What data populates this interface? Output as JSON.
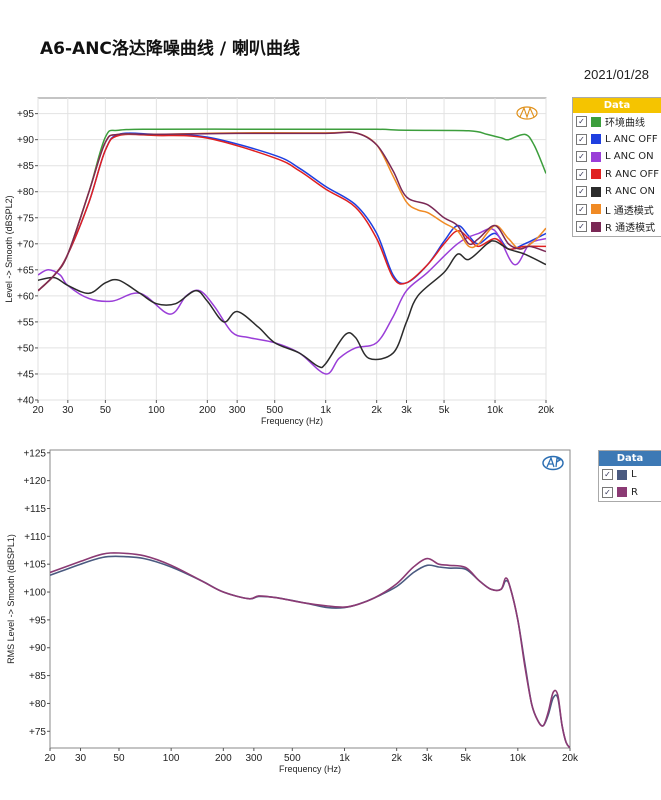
{
  "header": {
    "title": "A6-ANC洛达降噪曲线 / 喇叭曲线",
    "date": "2021/01/28"
  },
  "chart_data": [
    {
      "type": "line",
      "xscale": "log",
      "xlim": [
        20,
        20000
      ],
      "ylim": [
        40,
        98
      ],
      "xlabel": "Frequency (Hz)",
      "ylabel": "Level -> Smooth (dBSPL2)",
      "xticks": [
        20,
        30,
        50,
        100,
        200,
        300,
        500,
        1000,
        2000,
        3000,
        5000,
        10000,
        20000
      ],
      "xtick_labels": [
        "20",
        "30",
        "50",
        "100",
        "200",
        "300",
        "500",
        "1k",
        "2k",
        "3k",
        "5k",
        "10k",
        "20k"
      ],
      "yticks": [
        40,
        45,
        50,
        55,
        60,
        65,
        70,
        75,
        80,
        85,
        90,
        95
      ],
      "ytick_labels": [
        "+40",
        "+45",
        "+50",
        "+55",
        "+60",
        "+65",
        "+70",
        "+75",
        "+80",
        "+85",
        "+90",
        "+95"
      ],
      "grid": true,
      "legend": {
        "title": "Data",
        "position": "right"
      },
      "series": [
        {
          "name": "环境曲线",
          "color": "#3c9e3c",
          "points": [
            [
              20,
              61
            ],
            [
              25,
              64
            ],
            [
              30,
              68
            ],
            [
              40,
              80
            ],
            [
              50,
              90.5
            ],
            [
              60,
              91.8
            ],
            [
              100,
              92
            ],
            [
              300,
              92
            ],
            [
              1000,
              92
            ],
            [
              2000,
              92
            ],
            [
              3000,
              91.8
            ],
            [
              7000,
              91.7
            ],
            [
              9000,
              91
            ],
            [
              11000,
              90.3
            ],
            [
              12000,
              90
            ],
            [
              15000,
              91
            ],
            [
              17000,
              89
            ],
            [
              20000,
              83.5
            ]
          ]
        },
        {
          "name": "L ANC OFF",
          "color": "#1f3fe0",
          "points": [
            [
              20,
              61
            ],
            [
              25,
              64
            ],
            [
              30,
              68
            ],
            [
              40,
              78
            ],
            [
              50,
              88
            ],
            [
              60,
              91
            ],
            [
              100,
              91
            ],
            [
              200,
              90.5
            ],
            [
              500,
              87
            ],
            [
              700,
              84.5
            ],
            [
              1000,
              81
            ],
            [
              1500,
              77.5
            ],
            [
              2000,
              72
            ],
            [
              2500,
              64
            ],
            [
              3000,
              62.5
            ],
            [
              4000,
              66
            ],
            [
              5000,
              70.5
            ],
            [
              6000,
              73.5
            ],
            [
              7000,
              71.5
            ],
            [
              8000,
              70
            ],
            [
              10000,
              72
            ],
            [
              12000,
              69
            ],
            [
              15000,
              70
            ],
            [
              20000,
              72
            ]
          ]
        },
        {
          "name": "L ANC ON",
          "color": "#9a3ed8",
          "points": [
            [
              20,
              64
            ],
            [
              23,
              65
            ],
            [
              27,
              64
            ],
            [
              30,
              62
            ],
            [
              40,
              59.5
            ],
            [
              55,
              59
            ],
            [
              80,
              60.5
            ],
            [
              120,
              56.5
            ],
            [
              150,
              60
            ],
            [
              180,
              61
            ],
            [
              220,
              58
            ],
            [
              280,
              53
            ],
            [
              350,
              52
            ],
            [
              500,
              51
            ],
            [
              700,
              49
            ],
            [
              1000,
              45
            ],
            [
              1200,
              48
            ],
            [
              1500,
              50
            ],
            [
              2000,
              51
            ],
            [
              2500,
              56
            ],
            [
              3000,
              61
            ],
            [
              4000,
              64.5
            ],
            [
              6000,
              70
            ],
            [
              8000,
              72
            ],
            [
              10000,
              72.5
            ],
            [
              13000,
              66
            ],
            [
              16000,
              70
            ],
            [
              20000,
              71
            ]
          ]
        },
        {
          "name": "R ANC OFF",
          "color": "#e02020",
          "points": [
            [
              20,
              61
            ],
            [
              25,
              64
            ],
            [
              30,
              68
            ],
            [
              40,
              78
            ],
            [
              50,
              88
            ],
            [
              60,
              90.8
            ],
            [
              100,
              90.8
            ],
            [
              200,
              90.3
            ],
            [
              500,
              86.5
            ],
            [
              700,
              84
            ],
            [
              1000,
              80.5
            ],
            [
              1500,
              77
            ],
            [
              2000,
              71
            ],
            [
              2500,
              63.5
            ],
            [
              3000,
              62.5
            ],
            [
              4000,
              66
            ],
            [
              5000,
              70
            ],
            [
              6000,
              72.5
            ],
            [
              7000,
              71
            ],
            [
              8000,
              69.5
            ],
            [
              10000,
              71
            ],
            [
              12000,
              69
            ],
            [
              15000,
              69.5
            ],
            [
              20000,
              69.5
            ]
          ]
        },
        {
          "name": "R ANC ON",
          "color": "#2b2b2b",
          "points": [
            [
              20,
              63
            ],
            [
              25,
              63.5
            ],
            [
              30,
              62
            ],
            [
              40,
              60.5
            ],
            [
              50,
              62.5
            ],
            [
              60,
              63
            ],
            [
              80,
              60.5
            ],
            [
              100,
              58.5
            ],
            [
              130,
              58.5
            ],
            [
              170,
              61
            ],
            [
              200,
              59
            ],
            [
              250,
              55
            ],
            [
              300,
              57
            ],
            [
              400,
              54
            ],
            [
              500,
              51
            ],
            [
              700,
              49
            ],
            [
              900,
              46.5
            ],
            [
              1000,
              47
            ],
            [
              1300,
              52.5
            ],
            [
              1500,
              52
            ],
            [
              1800,
              48
            ],
            [
              2500,
              49
            ],
            [
              3000,
              55
            ],
            [
              3500,
              60
            ],
            [
              5000,
              64.5
            ],
            [
              6000,
              68
            ],
            [
              7000,
              67
            ],
            [
              9000,
              70
            ],
            [
              10000,
              70.5
            ],
            [
              12000,
              69
            ],
            [
              15000,
              68
            ],
            [
              20000,
              66
            ]
          ]
        },
        {
          "name": "L 通透模式",
          "color": "#f08a24",
          "points": [
            [
              20,
              61
            ],
            [
              25,
              64
            ],
            [
              30,
              68
            ],
            [
              40,
              80
            ],
            [
              50,
              89.5
            ],
            [
              60,
              91
            ],
            [
              100,
              91
            ],
            [
              300,
              91.3
            ],
            [
              1000,
              91.3
            ],
            [
              1500,
              91.3
            ],
            [
              2000,
              89
            ],
            [
              2500,
              83
            ],
            [
              3000,
              78
            ],
            [
              3500,
              76.5
            ],
            [
              4000,
              76
            ],
            [
              5000,
              74
            ],
            [
              6000,
              72.5
            ],
            [
              7000,
              69.5
            ],
            [
              8000,
              70
            ],
            [
              10000,
              73.5
            ],
            [
              12000,
              71
            ],
            [
              14000,
              69
            ],
            [
              17000,
              70.5
            ],
            [
              20000,
              73
            ]
          ]
        },
        {
          "name": "R 通透模式",
          "color": "#7a2855",
          "points": [
            [
              20,
              61
            ],
            [
              25,
              64
            ],
            [
              30,
              68
            ],
            [
              40,
              80
            ],
            [
              50,
              89.5
            ],
            [
              60,
              91
            ],
            [
              100,
              91
            ],
            [
              300,
              91.2
            ],
            [
              1000,
              91.2
            ],
            [
              1500,
              91.3
            ],
            [
              2000,
              89
            ],
            [
              2500,
              84
            ],
            [
              3000,
              79
            ],
            [
              4000,
              77.5
            ],
            [
              5000,
              75
            ],
            [
              6000,
              73.5
            ],
            [
              7000,
              70
            ],
            [
              8000,
              71
            ],
            [
              10000,
              73.5
            ],
            [
              12000,
              70
            ],
            [
              14000,
              69
            ],
            [
              16000,
              69.5
            ],
            [
              20000,
              68.5
            ]
          ]
        }
      ]
    },
    {
      "type": "line",
      "xscale": "log",
      "xlim": [
        20,
        20000
      ],
      "ylim": [
        72,
        125.5
      ],
      "xlabel": "Frequency (Hz)",
      "ylabel": "RMS Level -> Smooth (dBSPL1)",
      "xticks": [
        20,
        30,
        50,
        100,
        200,
        300,
        500,
        1000,
        2000,
        3000,
        5000,
        10000,
        20000
      ],
      "xtick_labels": [
        "20",
        "30",
        "50",
        "100",
        "200",
        "300",
        "500",
        "1k",
        "2k",
        "3k",
        "5k",
        "10k",
        "20k"
      ],
      "yticks": [
        75,
        80,
        85,
        90,
        95,
        100,
        105,
        110,
        115,
        120,
        125
      ],
      "ytick_labels": [
        "+75",
        "+80",
        "+85",
        "+90",
        "+95",
        "+100",
        "+105",
        "+110",
        "+115",
        "+120",
        "+125"
      ],
      "grid": false,
      "legend": {
        "title": "Data",
        "position": "right"
      },
      "series": [
        {
          "name": "L",
          "color": "#4a5a80",
          "points": [
            [
              20,
              103
            ],
            [
              30,
              105
            ],
            [
              40,
              106.2
            ],
            [
              50,
              106.4
            ],
            [
              70,
              106
            ],
            [
              100,
              104.5
            ],
            [
              150,
              102
            ],
            [
              200,
              100
            ],
            [
              280,
              98.8
            ],
            [
              320,
              99.2
            ],
            [
              400,
              99
            ],
            [
              600,
              98
            ],
            [
              800,
              97.2
            ],
            [
              1000,
              97.2
            ],
            [
              1200,
              97.8
            ],
            [
              1500,
              99
            ],
            [
              2000,
              101
            ],
            [
              2500,
              103.5
            ],
            [
              3000,
              104.8
            ],
            [
              3500,
              104.5
            ],
            [
              4000,
              104.3
            ],
            [
              5000,
              104.1
            ],
            [
              6000,
              102
            ],
            [
              7000,
              100.5
            ],
            [
              8000,
              100.5
            ],
            [
              8500,
              102
            ],
            [
              9000,
              101
            ],
            [
              10000,
              95
            ],
            [
              11000,
              87
            ],
            [
              12000,
              80
            ],
            [
              13000,
              77
            ],
            [
              14000,
              76
            ],
            [
              15000,
              78
            ],
            [
              16000,
              81
            ],
            [
              17000,
              81
            ],
            [
              18000,
              76
            ],
            [
              19000,
              73
            ],
            [
              20000,
              72
            ]
          ]
        },
        {
          "name": "R",
          "color": "#8b3a74",
          "points": [
            [
              20,
              103.5
            ],
            [
              30,
              105.5
            ],
            [
              40,
              106.8
            ],
            [
              50,
              107
            ],
            [
              70,
              106.5
            ],
            [
              100,
              104.8
            ],
            [
              150,
              102
            ],
            [
              200,
              100
            ],
            [
              280,
              98.8
            ],
            [
              320,
              99.3
            ],
            [
              400,
              99
            ],
            [
              600,
              98
            ],
            [
              800,
              97.5
            ],
            [
              1000,
              97.3
            ],
            [
              1200,
              97.8
            ],
            [
              1500,
              99
            ],
            [
              2000,
              101.5
            ],
            [
              2500,
              104.5
            ],
            [
              3000,
              106
            ],
            [
              3500,
              105
            ],
            [
              4000,
              104.8
            ],
            [
              5000,
              104.4
            ],
            [
              6000,
              102
            ],
            [
              7000,
              100.5
            ],
            [
              8000,
              100.5
            ],
            [
              8500,
              102.5
            ],
            [
              9000,
              101
            ],
            [
              10000,
              95
            ],
            [
              11000,
              86.5
            ],
            [
              12000,
              80
            ],
            [
              13000,
              77
            ],
            [
              14000,
              76
            ],
            [
              15000,
              78.5
            ],
            [
              16000,
              82
            ],
            [
              17000,
              81.5
            ],
            [
              18000,
              76
            ],
            [
              19000,
              73
            ],
            [
              20000,
              72
            ]
          ]
        }
      ]
    }
  ]
}
